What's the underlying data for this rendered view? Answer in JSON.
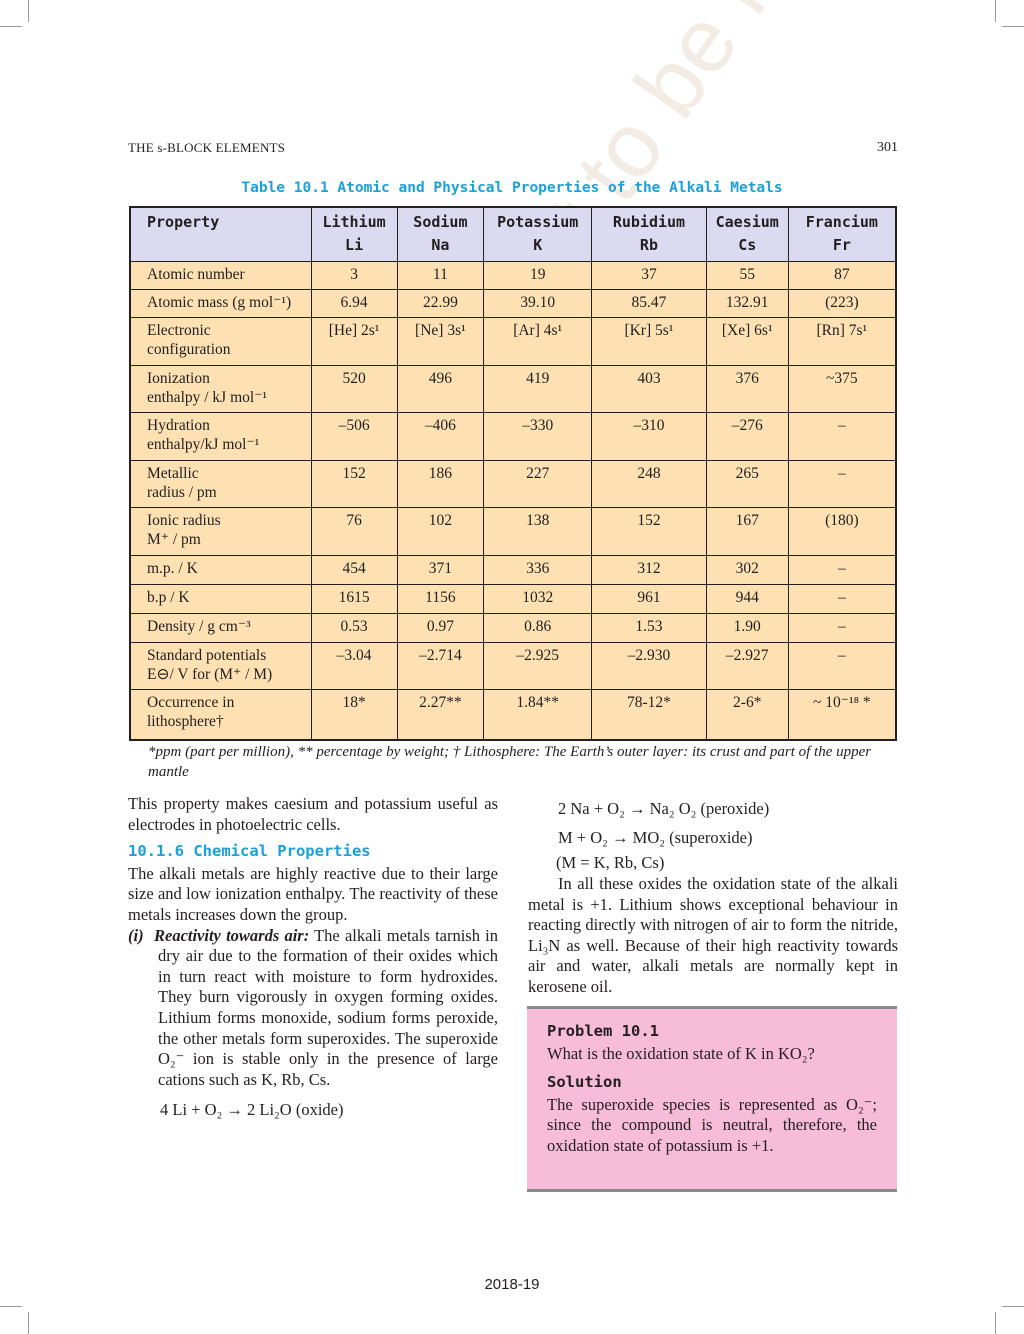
{
  "header": {
    "running_head": "THE s-BLOCK ELEMENTS",
    "page_number": "301"
  },
  "table": {
    "caption": "Table 10.1  Atomic and Physical Properties of the Alkali Metals",
    "columns": [
      {
        "name": "Property",
        "symbol": ""
      },
      {
        "name": "Lithium",
        "symbol": "Li"
      },
      {
        "name": "Sodium",
        "symbol": "Na"
      },
      {
        "name": "Potassium",
        "symbol": "K"
      },
      {
        "name": "Rubidium",
        "symbol": "Rb"
      },
      {
        "name": "Caesium",
        "symbol": "Cs"
      },
      {
        "name": "Francium",
        "symbol": "Fr"
      }
    ],
    "rows": [
      {
        "label": [
          "Atomic number"
        ],
        "values": [
          "3",
          "11",
          "19",
          "37",
          "55",
          "87"
        ]
      },
      {
        "label": [
          "Atomic mass (g mol⁻¹)"
        ],
        "values": [
          "6.94",
          "22.99",
          "39.10",
          "85.47",
          "132.91",
          "(223)"
        ]
      },
      {
        "label": [
          "Electronic",
          "configuration"
        ],
        "values": [
          "[He] 2s¹",
          "[Ne] 3s¹",
          "[Ar] 4s¹",
          "[Kr] 5s¹",
          "[Xe] 6s¹",
          "[Rn] 7s¹"
        ]
      },
      {
        "label": [
          "Ionization",
          "enthalpy / kJ mol⁻¹"
        ],
        "values": [
          "520",
          "496",
          "419",
          "403",
          "376",
          "~375"
        ]
      },
      {
        "label": [
          "Hydration",
          "enthalpy/kJ mol⁻¹"
        ],
        "values": [
          "–506",
          "–406",
          "–330",
          "–310",
          "–276",
          "–"
        ]
      },
      {
        "label": [
          "Metallic",
          "radius / pm"
        ],
        "values": [
          "152",
          "186",
          "227",
          "248",
          "265",
          "–"
        ]
      },
      {
        "label": [
          "Ionic radius",
          "M⁺ / pm"
        ],
        "values": [
          "76",
          "102",
          "138",
          "152",
          "167",
          "(180)"
        ]
      },
      {
        "label": [
          "m.p. / K"
        ],
        "values": [
          "454",
          "371",
          "336",
          "312",
          "302",
          "–"
        ]
      },
      {
        "label": [
          "b.p / K"
        ],
        "values": [
          "1615",
          "1156",
          "1032",
          "961",
          "944",
          "–"
        ]
      },
      {
        "label": [
          "Density / g cm⁻³"
        ],
        "values": [
          "0.53",
          "0.97",
          "0.86",
          "1.53",
          "1.90",
          "–"
        ]
      },
      {
        "label": [
          "Standard potentials",
          "E⊖/ V for (M⁺ / M)"
        ],
        "values": [
          "–3.04",
          "–2.714",
          "–2.925",
          "–2.930",
          "–2.927",
          "–"
        ]
      },
      {
        "label": [
          "Occurrence in",
          "lithosphere†"
        ],
        "values": [
          "18*",
          "2.27**",
          "1.84**",
          "78-12*",
          "2-6*",
          "~ 10⁻¹⁸ *"
        ]
      }
    ],
    "footnote": "*ppm (part per million), ** percentage by weight; † Lithosphere: The Earth’s outer layer: its crust and part of the upper mantle"
  },
  "left": {
    "intro": "This property makes caesium and potassium useful as electrodes in photoelectric cells.",
    "section_heading": "10.1.6 Chemical Properties",
    "para1": "The alkali metals are highly reactive due to their large size and low ionization enthalpy. The reactivity of these metals increases down the group.",
    "item_marker": "(i)",
    "item_title": "Reactivity towards air:",
    "item_text": " The alkali metals tarnish in dry air due to the formation of their oxides which in turn react with moisture to form hydroxides. They burn vigorously in oxygen forming oxides. Lithium forms monoxide, sodium forms peroxide, the other metals form superoxides. The superoxide O₂⁻ ion is stable only in the presence of large cations such as K, Rb, Cs.",
    "equation": "4 Li  + O₂ → 2 Li₂O (oxide)"
  },
  "right": {
    "eq1": "2 Na + O₂ → Na₂ O₂ (peroxide)",
    "eq2": "M + O₂ → MO₂ (superoxide)",
    "eq_note": "(M = K, Rb, Cs)",
    "para": "In all these oxides the oxidation state of the alkali metal is +1. Lithium shows exceptional behaviour in reacting directly with nitrogen of air to form the nitride, Li₃N as well. Because of their high reactivity towards air and water, alkali metals are normally kept in kerosene oil."
  },
  "problem": {
    "title": "Problem 10.1",
    "question": "What is the oxidation state of K in KO₂?",
    "solution_title": "Solution",
    "solution": "The superoxide species is represented as O₂⁻; since the compound is neutral, therefore, the oxidation state of potassium is +1."
  },
  "footer": {
    "year": "2018-19"
  },
  "watermark": "© NCERT not to be republished",
  "colors": {
    "accent": "#1aa0dc",
    "table_header": "#dcdaf0",
    "table_body": "#fde1b3",
    "problem_box": "#f7bcd7"
  }
}
